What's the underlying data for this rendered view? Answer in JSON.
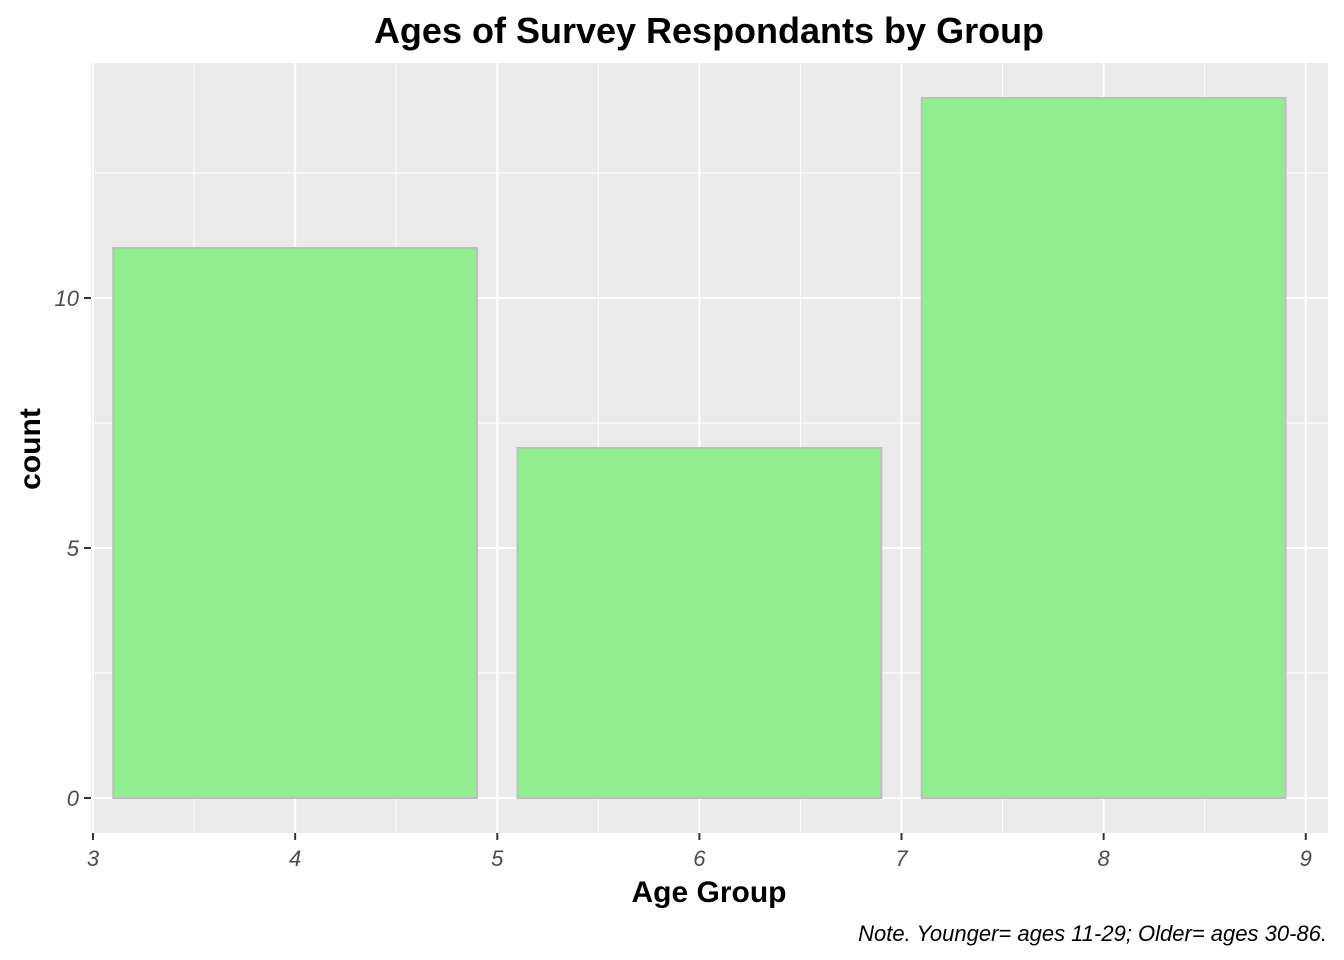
{
  "chart_data": {
    "type": "bar",
    "title": "Ages of Survey Respondants by Group",
    "xlabel": "Age Group",
    "ylabel": "count",
    "caption": "Note. Younger= ages 11-29; Older= ages 30-86.",
    "bars": [
      {
        "x": 4,
        "value": 11
      },
      {
        "x": 6,
        "value": 7
      },
      {
        "x": 8,
        "value": 14
      }
    ],
    "bar_width": 1.8,
    "xlim": [
      2.99,
      9.11
    ],
    "ylim": [
      -0.7,
      14.7
    ],
    "x_ticks": [
      3,
      4,
      5,
      6,
      7,
      8,
      9
    ],
    "x_minor_ticks": [
      3.5,
      4.5,
      5.5,
      6.5,
      7.5,
      8.5
    ],
    "y_ticks": [
      0,
      5,
      10
    ],
    "y_minor_ticks": [
      2.5,
      7.5,
      12.5
    ],
    "grid": true,
    "legend": "none",
    "colors": {
      "panel": "#ebebeb",
      "grid": "#ffffff",
      "bar_fill": "#90ee90",
      "bar_outline": "#bebebe",
      "tick": "#333333"
    }
  }
}
